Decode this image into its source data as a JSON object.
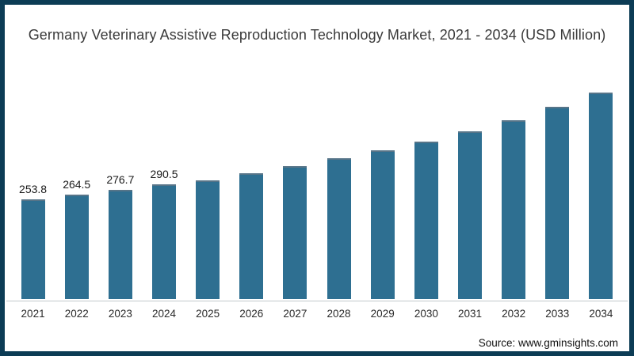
{
  "title": "Germany Veterinary Assistive Reproduction Technology Market, 2021 - 2034 (USD Million)",
  "source": "Source: www.gminsights.com",
  "colors": {
    "frame_border": "#0c3c55",
    "bar_fill": "#2e6f91",
    "bar_top_edge": "#567488",
    "axis_line": "#c2c8cb",
    "background": "#ffffff"
  },
  "chart_data": {
    "type": "bar",
    "title": "Germany Veterinary Assistive Reproduction Technology Market, 2021 - 2034 (USD Million)",
    "categories": [
      "2021",
      "2022",
      "2023",
      "2024",
      "2025",
      "2026",
      "2027",
      "2028",
      "2029",
      "2030",
      "2031",
      "2032",
      "2033",
      "2034"
    ],
    "values": [
      253.8,
      264.5,
      276.7,
      290.5,
      302.3,
      319.0,
      338.5,
      358.7,
      377.9,
      399.9,
      426.5,
      454.8,
      488.5,
      524.0
    ],
    "data_labels": [
      "253.8",
      "264.5",
      "276.7",
      "290.5",
      "",
      "",
      "",
      "",
      "",
      "",
      "",
      "",
      "",
      ""
    ],
    "xlabel": "",
    "ylabel": "",
    "ylim": [
      0,
      550
    ],
    "grid": false,
    "legend": false,
    "y_axis_visible": false,
    "x_axis_visible": true
  }
}
